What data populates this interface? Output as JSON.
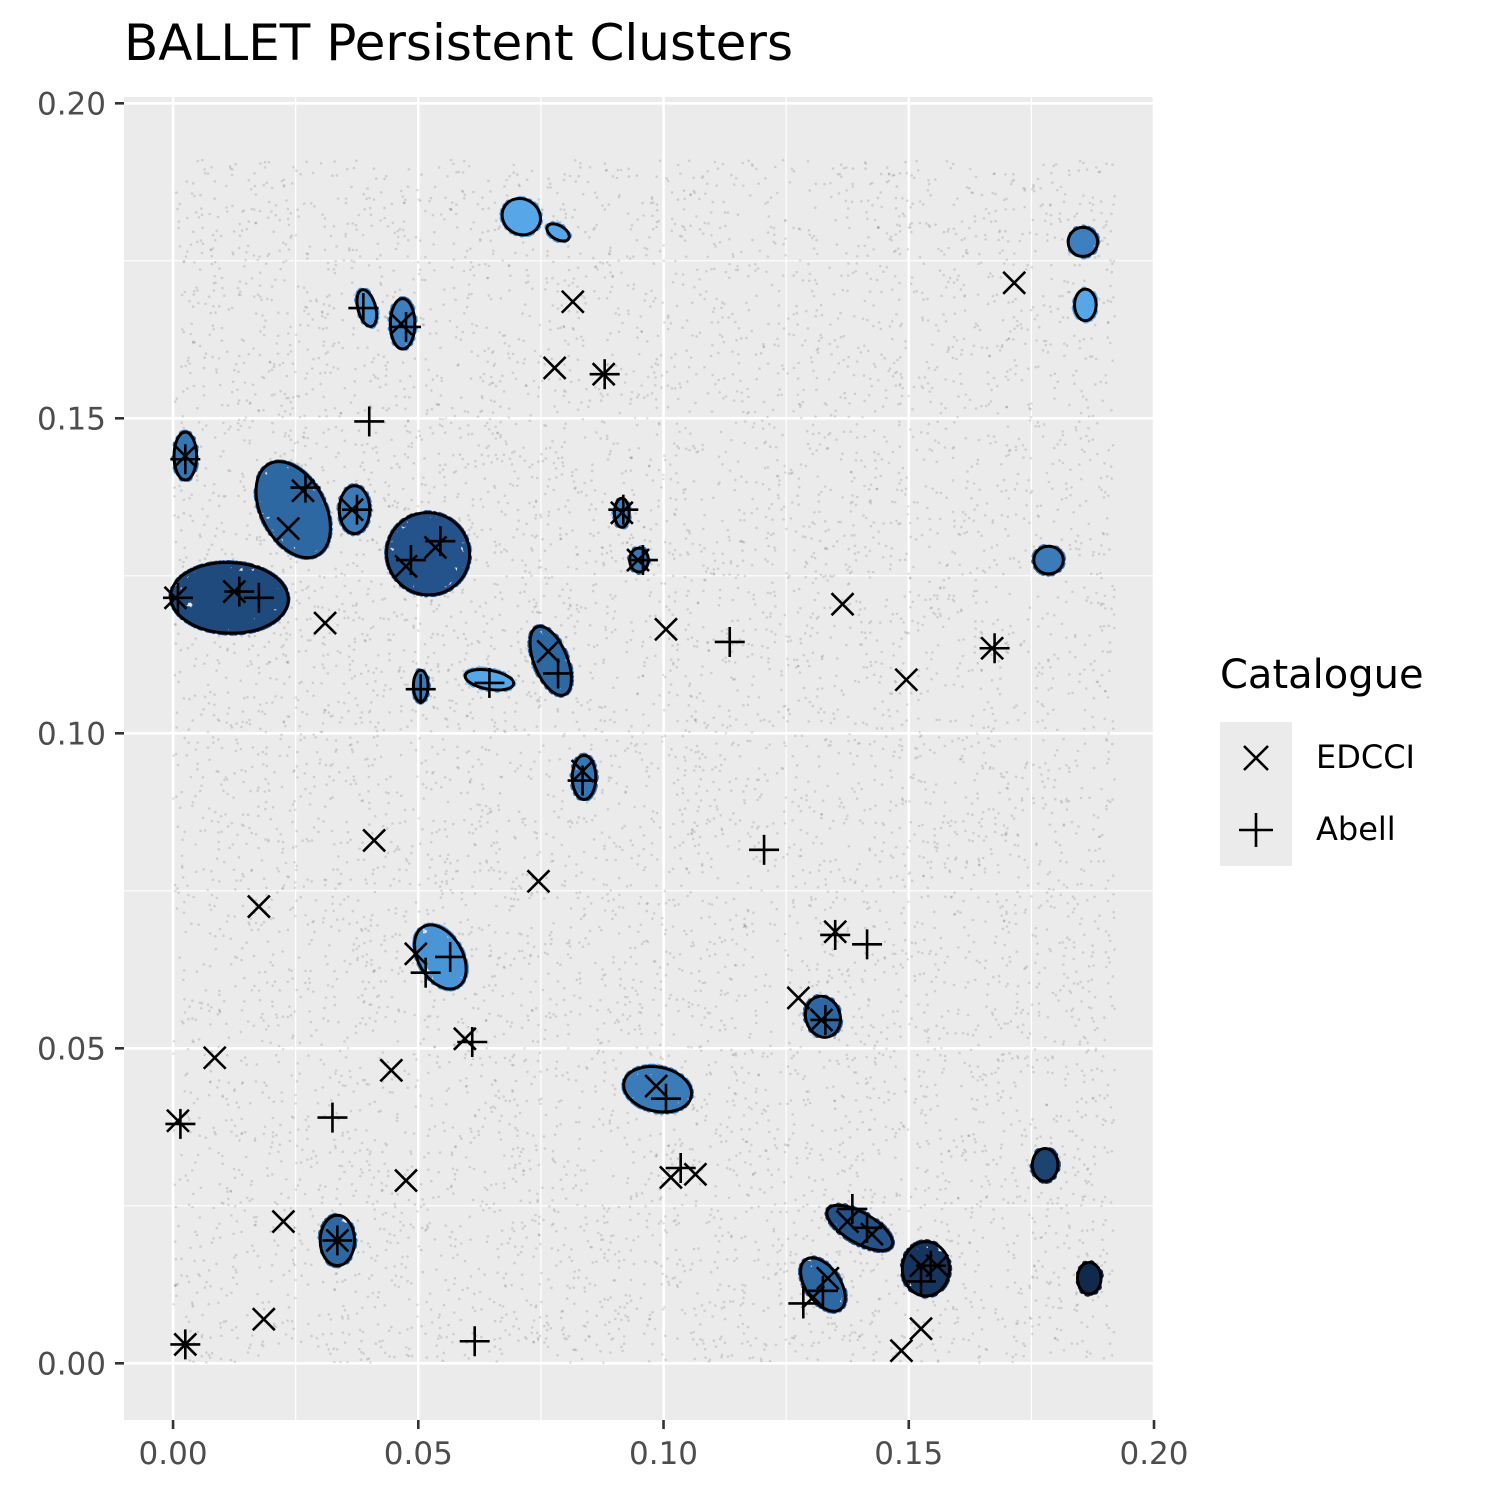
{
  "chart_data": {
    "type": "scatter",
    "title": "BALLET Persistent Clusters",
    "xlabel": "",
    "ylabel": "",
    "xlim": [
      -0.01,
      0.2
    ],
    "ylim": [
      -0.009,
      0.201
    ],
    "x_ticks": [
      "0.00",
      "0.05",
      "0.10",
      "0.15",
      "0.20"
    ],
    "y_ticks": [
      "0.00",
      "0.05",
      "0.10",
      "0.15",
      "0.20"
    ],
    "grid": true,
    "legend": {
      "title": "Catalogue",
      "placement": "right",
      "entries": [
        "EDCCI",
        "Abell"
      ]
    },
    "background_points": {
      "x_range": [
        0,
        0.192
      ],
      "y_range": [
        0,
        0.191
      ],
      "color": "#000000",
      "opacity": 0.12
    },
    "clusters": [
      {
        "cx": 0.071,
        "cy": 0.182,
        "rx": 0.004,
        "ry": 0.0028,
        "angle": -30,
        "color": "#56a6e8"
      },
      {
        "cx": 0.0785,
        "cy": 0.1795,
        "rx": 0.0025,
        "ry": 0.0011,
        "angle": -30,
        "color": "#56a6e8"
      },
      {
        "cx": 0.0395,
        "cy": 0.1675,
        "rx": 0.0018,
        "ry": 0.003,
        "angle": 15,
        "color": "#4a95d6"
      },
      {
        "cx": 0.0468,
        "cy": 0.165,
        "rx": 0.0025,
        "ry": 0.004,
        "angle": 0,
        "color": "#3d7fbf"
      },
      {
        "cx": 0.0025,
        "cy": 0.144,
        "rx": 0.0023,
        "ry": 0.0038,
        "angle": 0,
        "color": "#3576b5"
      },
      {
        "cx": 0.0245,
        "cy": 0.1355,
        "rx": 0.0065,
        "ry": 0.0082,
        "angle": 28,
        "color": "#2e68a3"
      },
      {
        "cx": 0.037,
        "cy": 0.1355,
        "rx": 0.0031,
        "ry": 0.0038,
        "angle": 0,
        "color": "#3a7bb8"
      },
      {
        "cx": 0.052,
        "cy": 0.1285,
        "rx": 0.0085,
        "ry": 0.0065,
        "angle": -28,
        "color": "#24528a"
      },
      {
        "cx": 0.0115,
        "cy": 0.1215,
        "rx": 0.012,
        "ry": 0.0056,
        "angle": -2,
        "color": "#1f4a7d"
      },
      {
        "cx": 0.0915,
        "cy": 0.135,
        "rx": 0.0015,
        "ry": 0.0023,
        "angle": 0,
        "color": "#3d7fbf"
      },
      {
        "cx": 0.095,
        "cy": 0.1275,
        "rx": 0.0019,
        "ry": 0.0019,
        "angle": 0,
        "color": "#3576b5"
      },
      {
        "cx": 0.077,
        "cy": 0.1115,
        "rx": 0.0034,
        "ry": 0.0058,
        "angle": 22,
        "color": "#2e68a3"
      },
      {
        "cx": 0.0505,
        "cy": 0.1075,
        "rx": 0.0015,
        "ry": 0.0025,
        "angle": 0,
        "color": "#3a7bb8"
      },
      {
        "cx": 0.0645,
        "cy": 0.1085,
        "rx": 0.005,
        "ry": 0.0015,
        "angle": -10,
        "color": "#56a6e8"
      },
      {
        "cx": 0.0838,
        "cy": 0.093,
        "rx": 0.0024,
        "ry": 0.0035,
        "angle": 0,
        "color": "#3576b5"
      },
      {
        "cx": 0.0545,
        "cy": 0.0645,
        "rx": 0.0045,
        "ry": 0.0055,
        "angle": 30,
        "color": "#4a95d6"
      },
      {
        "cx": 0.0988,
        "cy": 0.0435,
        "rx": 0.007,
        "ry": 0.0035,
        "angle": -12,
        "color": "#3a7bb8"
      },
      {
        "cx": 0.1325,
        "cy": 0.055,
        "rx": 0.0035,
        "ry": 0.0033,
        "angle": 18,
        "color": "#2e68a3"
      },
      {
        "cx": 0.0335,
        "cy": 0.0195,
        "rx": 0.0035,
        "ry": 0.004,
        "angle": 0,
        "color": "#2e68a3"
      },
      {
        "cx": 0.14,
        "cy": 0.0215,
        "rx": 0.0075,
        "ry": 0.0024,
        "angle": -30,
        "color": "#24528a"
      },
      {
        "cx": 0.1325,
        "cy": 0.0125,
        "rx": 0.0035,
        "ry": 0.0048,
        "angle": 35,
        "color": "#2e68a3"
      },
      {
        "cx": 0.1535,
        "cy": 0.015,
        "rx": 0.0048,
        "ry": 0.0043,
        "angle": 0,
        "color": "#16355e"
      },
      {
        "cx": 0.1778,
        "cy": 0.0315,
        "rx": 0.0026,
        "ry": 0.0026,
        "angle": 0,
        "color": "#1d4370"
      },
      {
        "cx": 0.1868,
        "cy": 0.0135,
        "rx": 0.0024,
        "ry": 0.0025,
        "angle": 0,
        "color": "#112a4c"
      },
      {
        "cx": 0.1785,
        "cy": 0.1275,
        "rx": 0.003,
        "ry": 0.0022,
        "angle": 0,
        "color": "#3a7bb8"
      },
      {
        "cx": 0.1855,
        "cy": 0.178,
        "rx": 0.003,
        "ry": 0.0023,
        "angle": 0,
        "color": "#3d7fbf"
      },
      {
        "cx": 0.186,
        "cy": 0.168,
        "rx": 0.0022,
        "ry": 0.0025,
        "angle": 0,
        "color": "#56a6e8"
      }
    ],
    "series": [
      {
        "name": "EDCCI",
        "marker": "x",
        "points": [
          [
            0.0815,
            0.1685
          ],
          [
            0.0778,
            0.158
          ],
          [
            0.0878,
            0.157
          ],
          [
            0.0465,
            0.165
          ],
          [
            0.0025,
            0.144
          ],
          [
            0.0265,
            0.1385
          ],
          [
            0.0235,
            0.1325
          ],
          [
            0.0365,
            0.1355
          ],
          [
            0.0535,
            0.1295
          ],
          [
            0.0475,
            0.1265
          ],
          [
            0.0005,
            0.1215
          ],
          [
            0.0125,
            0.1225
          ],
          [
            0.031,
            0.1175
          ],
          [
            0.0915,
            0.135
          ],
          [
            0.0948,
            0.1275
          ],
          [
            0.1005,
            0.1165
          ],
          [
            0.1365,
            0.1205
          ],
          [
            0.1495,
            0.1085
          ],
          [
            0.1715,
            0.1715
          ],
          [
            0.167,
            0.1135
          ],
          [
            0.0765,
            0.113
          ],
          [
            0.0835,
            0.094
          ],
          [
            0.041,
            0.083
          ],
          [
            0.0745,
            0.0765
          ],
          [
            0.0175,
            0.0725
          ],
          [
            0.0495,
            0.065
          ],
          [
            0.135,
            0.0685
          ],
          [
            0.1275,
            0.058
          ],
          [
            0.1322,
            0.0545
          ],
          [
            0.0595,
            0.0515
          ],
          [
            0.0085,
            0.0485
          ],
          [
            0.0445,
            0.0465
          ],
          [
            0.0985,
            0.044
          ],
          [
            0.001,
            0.0385
          ],
          [
            0.1015,
            0.0295
          ],
          [
            0.1065,
            0.03
          ],
          [
            0.0475,
            0.029
          ],
          [
            0.0225,
            0.0225
          ],
          [
            0.0335,
            0.0195
          ],
          [
            0.0185,
            0.007
          ],
          [
            0.0025,
            0.003
          ],
          [
            0.1375,
            0.0225
          ],
          [
            0.1425,
            0.0205
          ],
          [
            0.1305,
            0.0105
          ],
          [
            0.1335,
            0.0135
          ],
          [
            0.1525,
            0.0055
          ],
          [
            0.1485,
            0.002
          ],
          [
            0.1525,
            0.0155
          ],
          [
            0.1558,
            0.0155
          ]
        ]
      },
      {
        "name": "Abell",
        "marker": "+",
        "points": [
          [
            0.0388,
            0.1675
          ],
          [
            0.0475,
            0.1645
          ],
          [
            0.088,
            0.157
          ],
          [
            0.04,
            0.1495
          ],
          [
            0.0025,
            0.1435
          ],
          [
            0.027,
            0.139
          ],
          [
            0.0375,
            0.1355
          ],
          [
            0.0545,
            0.1305
          ],
          [
            0.0485,
            0.1275
          ],
          [
            0.001,
            0.1215
          ],
          [
            0.0135,
            0.1225
          ],
          [
            0.0175,
            0.1215
          ],
          [
            0.0918,
            0.1355
          ],
          [
            0.0958,
            0.1275
          ],
          [
            0.1135,
            0.1145
          ],
          [
            0.1675,
            0.1135
          ],
          [
            0.0785,
            0.1095
          ],
          [
            0.0505,
            0.107
          ],
          [
            0.0645,
            0.108
          ],
          [
            0.0835,
            0.0925
          ],
          [
            0.1205,
            0.0815
          ],
          [
            0.135,
            0.068
          ],
          [
            0.1415,
            0.0665
          ],
          [
            0.0565,
            0.0645
          ],
          [
            0.0515,
            0.062
          ],
          [
            0.061,
            0.051
          ],
          [
            0.133,
            0.0545
          ],
          [
            0.1005,
            0.042
          ],
          [
            0.0015,
            0.038
          ],
          [
            0.0325,
            0.039
          ],
          [
            0.1035,
            0.031
          ],
          [
            0.0335,
            0.0195
          ],
          [
            0.1385,
            0.0245
          ],
          [
            0.1415,
            0.0215
          ],
          [
            0.0025,
            0.003
          ],
          [
            0.0615,
            0.0035
          ],
          [
            0.1285,
            0.0095
          ],
          [
            0.1325,
            0.0115
          ],
          [
            0.1545,
            0.0155
          ],
          [
            0.1525,
            0.013
          ]
        ]
      }
    ]
  }
}
